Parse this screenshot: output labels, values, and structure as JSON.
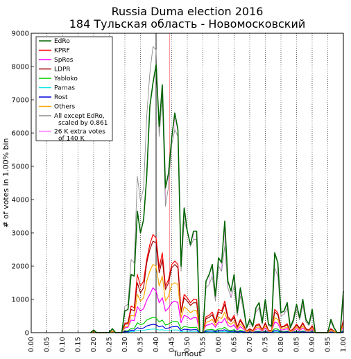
{
  "chart_data": {
    "type": "line",
    "title_line1": "Russia Duma election 2016",
    "title_line2": "184 Тульская область - Новомосковский",
    "xlabel": "Turnout",
    "ylabel": "# of votes in 1.00% bin",
    "xlim": [
      0,
      1
    ],
    "ylim": [
      0,
      9000
    ],
    "x_ticks": [
      "0.00",
      "0.05",
      "0.10",
      "0.15",
      "0.20",
      "0.25",
      "0.30",
      "0.35",
      "0.40",
      "0.45",
      "0.50",
      "0.55",
      "0.60",
      "0.65",
      "0.70",
      "0.75",
      "0.80",
      "0.85",
      "0.90",
      "0.95",
      "1.00"
    ],
    "y_ticks": [
      "0",
      "1000",
      "2000",
      "3000",
      "4000",
      "5000",
      "6000",
      "7000",
      "8000",
      "9000"
    ],
    "grid": "vertical dotted",
    "legend_position": "top-left",
    "vlines": [
      {
        "x": 0.4,
        "color": "#000000"
      },
      {
        "x": 0.443,
        "color": "#ff8080"
      }
    ],
    "x": [
      0.19,
      0.2,
      0.21,
      0.25,
      0.26,
      0.27,
      0.29,
      0.3,
      0.31,
      0.32,
      0.33,
      0.34,
      0.35,
      0.36,
      0.37,
      0.38,
      0.39,
      0.4,
      0.41,
      0.42,
      0.43,
      0.44,
      0.45,
      0.46,
      0.47,
      0.48,
      0.49,
      0.5,
      0.51,
      0.52,
      0.53,
      0.54,
      0.55,
      0.56,
      0.57,
      0.58,
      0.59,
      0.6,
      0.61,
      0.62,
      0.63,
      0.64,
      0.65,
      0.66,
      0.67,
      0.68,
      0.69,
      0.7,
      0.71,
      0.72,
      0.73,
      0.74,
      0.75,
      0.76,
      0.77,
      0.78,
      0.79,
      0.8,
      0.81,
      0.82,
      0.83,
      0.84,
      0.85,
      0.86,
      0.87,
      0.88,
      0.89,
      0.9,
      0.91,
      0.92,
      0.93,
      0.94,
      0.95,
      0.96,
      0.97,
      0.98,
      0.99,
      1.0
    ],
    "series": [
      {
        "name": "EdRo",
        "color": "#006400",
        "width": 1.6,
        "values": [
          0,
          80,
          0,
          0,
          120,
          0,
          0,
          650,
          700,
          1750,
          1700,
          3650,
          3000,
          3400,
          4700,
          6800,
          7500,
          8050,
          6200,
          7450,
          4350,
          4800,
          5850,
          6600,
          6100,
          2000,
          3750,
          3050,
          2650,
          3050,
          3050,
          0,
          0,
          1550,
          1750,
          2050,
          1100,
          2250,
          2100,
          3350,
          1550,
          1250,
          1750,
          600,
          1350,
          800,
          150,
          400,
          200,
          750,
          900,
          300,
          1000,
          250,
          200,
          2400,
          2100,
          600,
          650,
          900,
          150,
          400,
          850,
          450,
          1000,
          400,
          250,
          700,
          0,
          0,
          0,
          0,
          0,
          400,
          150,
          0,
          0,
          1250
        ]
      },
      {
        "name": "KPRF",
        "color": "#ff0000",
        "width": 1.2,
        "values": [
          0,
          30,
          0,
          0,
          50,
          0,
          0,
          280,
          300,
          800,
          750,
          1750,
          1400,
          1550,
          2200,
          2650,
          2950,
          2850,
          1950,
          2400,
          1400,
          1600,
          2050,
          2150,
          2050,
          650,
          1150,
          1050,
          900,
          1000,
          1000,
          0,
          0,
          480,
          520,
          620,
          350,
          700,
          650,
          950,
          480,
          380,
          520,
          180,
          400,
          240,
          50,
          120,
          60,
          230,
          270,
          90,
          300,
          80,
          60,
          700,
          600,
          180,
          200,
          270,
          50,
          120,
          260,
          140,
          300,
          120,
          80,
          210,
          0,
          0,
          0,
          0,
          0,
          120,
          50,
          0,
          0,
          380
        ]
      },
      {
        "name": "SpRos",
        "color": "#ff00ff",
        "width": 1.2,
        "values": [
          0,
          15,
          0,
          0,
          25,
          0,
          0,
          150,
          160,
          380,
          360,
          780,
          650,
          720,
          980,
          1150,
          1350,
          1250,
          900,
          1050,
          650,
          740,
          900,
          950,
          900,
          300,
          520,
          480,
          400,
          450,
          450,
          0,
          0,
          220,
          240,
          280,
          160,
          320,
          300,
          430,
          220,
          170,
          240,
          80,
          180,
          110,
          20,
          55,
          28,
          100,
          120,
          40,
          140,
          35,
          28,
          320,
          280,
          80,
          90,
          120,
          22,
          55,
          120,
          60,
          140,
          55,
          35,
          95,
          0,
          0,
          0,
          0,
          0,
          55,
          22,
          0,
          0,
          170
        ]
      },
      {
        "name": "LDPR",
        "color": "#a00000",
        "width": 1.2,
        "values": [
          0,
          25,
          0,
          0,
          45,
          0,
          0,
          250,
          270,
          700,
          660,
          1500,
          1200,
          1350,
          2100,
          2500,
          2750,
          2700,
          1800,
          2200,
          1300,
          1500,
          1950,
          2050,
          1950,
          600,
          1050,
          950,
          820,
          900,
          900,
          0,
          0,
          420,
          460,
          540,
          300,
          620,
          580,
          850,
          430,
          340,
          460,
          160,
          360,
          210,
          45,
          110,
          55,
          200,
          240,
          80,
          270,
          70,
          55,
          620,
          540,
          160,
          180,
          240,
          45,
          110,
          230,
          120,
          270,
          110,
          70,
          190,
          0,
          0,
          0,
          0,
          0,
          110,
          45,
          0,
          0,
          340
        ]
      },
      {
        "name": "Yabloko",
        "color": "#00cc00",
        "width": 1.2,
        "values": [
          0,
          5,
          0,
          0,
          8,
          0,
          0,
          50,
          55,
          130,
          120,
          300,
          240,
          270,
          380,
          420,
          460,
          440,
          320,
          380,
          230,
          260,
          320,
          340,
          330,
          110,
          190,
          170,
          150,
          160,
          160,
          0,
          0,
          80,
          90,
          100,
          60,
          115,
          110,
          160,
          80,
          65,
          90,
          30,
          70,
          40,
          8,
          20,
          10,
          38,
          45,
          15,
          52,
          14,
          10,
          120,
          105,
          30,
          35,
          45,
          8,
          20,
          45,
          24,
          52,
          20,
          14,
          36,
          0,
          0,
          0,
          0,
          0,
          20,
          8,
          0,
          0,
          65
        ]
      },
      {
        "name": "Parnas",
        "color": "#00e5e5",
        "width": 1.0,
        "values": [
          0,
          2,
          0,
          0,
          3,
          0,
          0,
          15,
          16,
          35,
          33,
          75,
          60,
          68,
          90,
          100,
          110,
          105,
          78,
          92,
          56,
          62,
          78,
          82,
          80,
          28,
          46,
          42,
          36,
          40,
          40,
          0,
          0,
          20,
          22,
          25,
          15,
          28,
          27,
          38,
          20,
          16,
          22,
          8,
          17,
          10,
          2,
          5,
          3,
          10,
          11,
          4,
          13,
          4,
          3,
          30,
          26,
          8,
          9,
          11,
          2,
          5,
          11,
          6,
          13,
          5,
          4,
          9,
          0,
          0,
          0,
          0,
          0,
          5,
          2,
          0,
          0,
          16
        ]
      },
      {
        "name": "Rost",
        "color": "#0000dd",
        "width": 1.2,
        "values": [
          0,
          3,
          0,
          0,
          5,
          0,
          0,
          30,
          32,
          75,
          70,
          150,
          125,
          140,
          200,
          230,
          250,
          240,
          175,
          205,
          125,
          140,
          175,
          185,
          180,
          60,
          105,
          95,
          82,
          90,
          90,
          0,
          0,
          44,
          48,
          56,
          32,
          62,
          60,
          88,
          44,
          36,
          48,
          16,
          38,
          22,
          4,
          10,
          5,
          20,
          24,
          8,
          27,
          7,
          5,
          62,
          54,
          16,
          18,
          24,
          4,
          10,
          24,
          12,
          27,
          10,
          7,
          19,
          0,
          0,
          0,
          0,
          0,
          10,
          4,
          0,
          0,
          34
        ]
      },
      {
        "name": "Others",
        "color": "#ffa500",
        "width": 1.2,
        "values": [
          0,
          20,
          0,
          0,
          35,
          0,
          0,
          180,
          190,
          520,
          500,
          1150,
          950,
          1050,
          1550,
          1850,
          2050,
          2000,
          1400,
          1700,
          950,
          1100,
          1450,
          1500,
          1450,
          450,
          780,
          700,
          600,
          660,
          660,
          0,
          0,
          310,
          340,
          400,
          220,
          460,
          430,
          620,
          310,
          250,
          340,
          120,
          260,
          160,
          33,
          80,
          40,
          150,
          175,
          60,
          200,
          52,
          40,
          450,
          400,
          120,
          130,
          175,
          33,
          80,
          170,
          90,
          200,
          80,
          52,
          140,
          0,
          0,
          0,
          0,
          0,
          80,
          33,
          0,
          0,
          250
        ]
      },
      {
        "name": "All except EdRo, scaled by 0.861",
        "color": "#8c8c8c",
        "width": 0.9,
        "values": [
          0,
          80,
          0,
          0,
          120,
          0,
          0,
          800,
          850,
          2200,
          2100,
          4700,
          3950,
          4350,
          6500,
          7800,
          8600,
          8500,
          5900,
          7100,
          3800,
          4400,
          5650,
          6100,
          5900,
          1850,
          3350,
          3050,
          2600,
          2800,
          2800,
          0,
          0,
          1350,
          1450,
          1700,
          950,
          2000,
          1850,
          2600,
          1350,
          1050,
          1400,
          500,
          1100,
          680,
          130,
          320,
          160,
          620,
          740,
          250,
          820,
          210,
          160,
          1950,
          1700,
          500,
          550,
          740,
          130,
          320,
          700,
          380,
          820,
          320,
          210,
          580,
          0,
          0,
          0,
          0,
          0,
          320,
          130,
          0,
          0,
          1020
        ]
      }
    ],
    "legend": [
      {
        "label": "EdRo",
        "color": "#006400"
      },
      {
        "label": "KPRF",
        "color": "#ff0000"
      },
      {
        "label": "SpRos",
        "color": "#ff00ff"
      },
      {
        "label": "LDPR",
        "color": "#a00000"
      },
      {
        "label": "Yabloko",
        "color": "#00cc00"
      },
      {
        "label": "Parnas",
        "color": "#00e5e5"
      },
      {
        "label": "Rost",
        "color": "#0000dd"
      },
      {
        "label": "Others",
        "color": "#ffa500"
      },
      {
        "label": "All except EdRo,",
        "label2": "scaled by 0.861",
        "color": "#8c8c8c"
      },
      {
        "label": "26 K extra votes",
        "label2": "of 140 K",
        "color": "#ff88ff"
      }
    ],
    "extra_votes_fill_color": "#ff88ff"
  }
}
